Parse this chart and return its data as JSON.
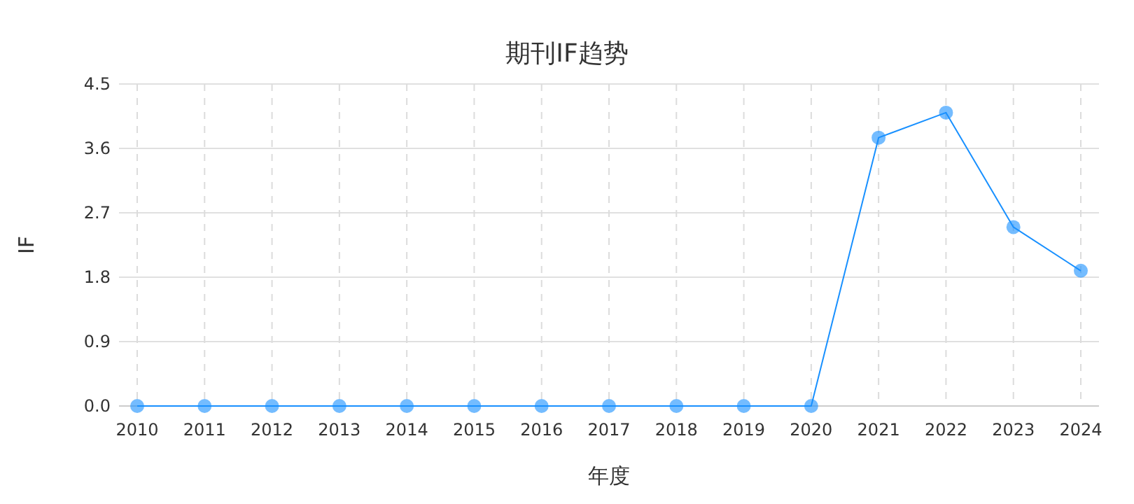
{
  "chart_data": {
    "type": "line",
    "title": "期刊IF趋势",
    "xlabel": "年度",
    "ylabel": "IF",
    "categories": [
      "2010",
      "2011",
      "2012",
      "2013",
      "2014",
      "2015",
      "2016",
      "2017",
      "2018",
      "2019",
      "2020",
      "2021",
      "2022",
      "2023",
      "2024"
    ],
    "series": [
      {
        "color": "#1890ff",
        "values": [
          0,
          0,
          0,
          0,
          0,
          0,
          0,
          0,
          0,
          0,
          0,
          3.75,
          4.1,
          2.5,
          1.89
        ]
      }
    ],
    "ylim": [
      0,
      4.5
    ],
    "yticks": [
      {
        "value": 0,
        "label": "0.0"
      },
      {
        "value": 0.9,
        "label": "0.9"
      },
      {
        "value": 1.8,
        "label": "1.8"
      },
      {
        "value": 2.7,
        "label": "2.7"
      },
      {
        "value": 3.6,
        "label": "3.6"
      },
      {
        "value": 4.5,
        "label": "4.5"
      }
    ],
    "grid": true,
    "marker": "circle",
    "line_style": "solid"
  }
}
